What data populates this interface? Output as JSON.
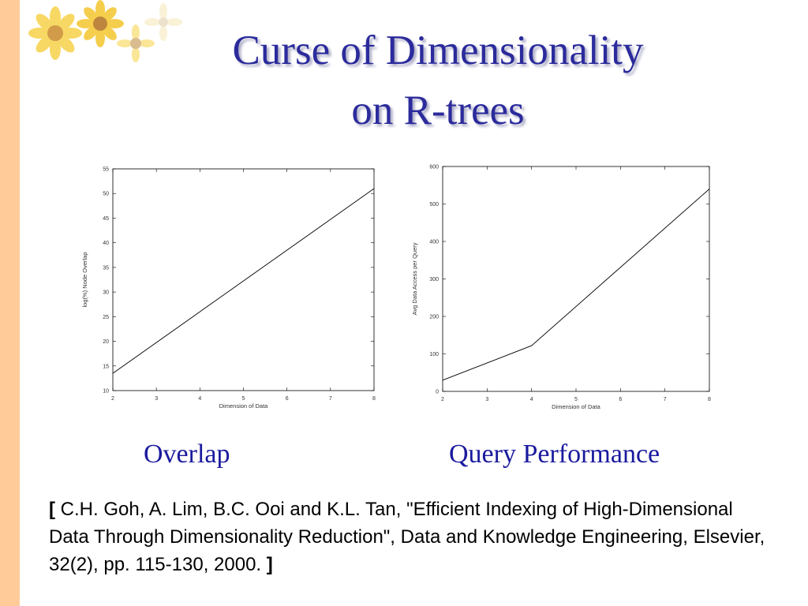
{
  "slide": {
    "title_line1": "Curse of Dimensionality",
    "title_line2": "on R-trees",
    "caption_left": "Overlap",
    "caption_right": "Query Performance",
    "citation_open": "[",
    "citation_text": " C.H. Goh, A. Lim, B.C. Ooi and K.L. Tan, \"Efficient Indexing of High-Dimensional Data Through Dimensionality Reduction\",   Data and Knowledge Engineering, Elsevier, 32(2), pp. 115-130, 2000. ",
    "citation_close": "]"
  },
  "colors": {
    "title": "#2b2b9c",
    "caption": "#1a1a9e",
    "sidebar": "#ffcc99",
    "line": "#000000"
  },
  "decoration": {
    "icon": "sunflower-icon"
  },
  "chart_data": [
    {
      "type": "line",
      "xlabel": "Dimension of Data",
      "ylabel": "log(%) Node Overlap",
      "x": [
        2,
        8
      ],
      "y": [
        13.5,
        51
      ],
      "xlim": [
        2,
        8
      ],
      "ylim": [
        10,
        55
      ],
      "xticks": [
        2,
        3,
        4,
        5,
        6,
        7,
        8
      ],
      "yticks": [
        10,
        15,
        20,
        25,
        30,
        35,
        40,
        45,
        50,
        55
      ],
      "grid": false
    },
    {
      "type": "line",
      "xlabel": "Dimension of Data",
      "ylabel": "Avg Data Access per Query",
      "x": [
        2,
        4,
        8
      ],
      "y": [
        30,
        122,
        540
      ],
      "xlim": [
        2,
        8
      ],
      "ylim": [
        0,
        600
      ],
      "xticks": [
        2,
        3,
        4,
        5,
        6,
        7,
        8
      ],
      "yticks": [
        0,
        100,
        200,
        300,
        400,
        500,
        600
      ],
      "grid": false
    }
  ]
}
